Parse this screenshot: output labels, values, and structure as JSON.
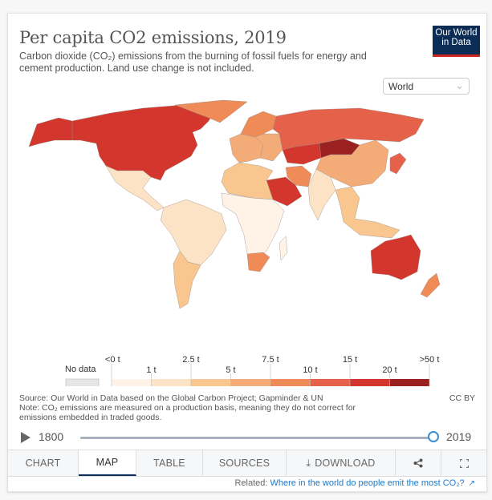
{
  "header": {
    "title": "Per capita CO2 emissions, 2019",
    "subtitle": "Carbon dioxide (CO₂) emissions from the burning of fossil fuels for energy and cement production. Land use change is not included.",
    "logo_line1": "Our World",
    "logo_line2": "in Data"
  },
  "region_select": {
    "value": "World",
    "icon": "chevron-down-icon"
  },
  "colors": {
    "no_data": "#e6e6e6",
    "bins": [
      "#fef3e6",
      "#fde3c5",
      "#f9c690",
      "#f3ac78",
      "#ee8b57",
      "#e6614a",
      "#d2362d",
      "#9b2120"
    ],
    "brand": "#0b2c55",
    "accent": "#ce261e",
    "link": "#1d78c9"
  },
  "chart_data": {
    "type": "choropleth",
    "title": "Per capita CO2 emissions, 2019",
    "unit": "t",
    "legend": {
      "no_data_label": "No data",
      "thresholds": [
        "<0 t",
        "1 t",
        "2.5 t",
        "5 t",
        "7.5 t",
        "10 t",
        "15 t",
        "20 t",
        ">50 t"
      ],
      "top_labels": [
        "<0 t",
        "2.5 t",
        "7.5 t",
        "15 t",
        ">50 t"
      ],
      "bottom_labels": [
        "1 t",
        "5 t",
        "10 t",
        "20 t"
      ]
    },
    "regions": [
      {
        "name": "United States / Canada",
        "bin": 6
      },
      {
        "name": "Alaska",
        "bin": 6
      },
      {
        "name": "Greenland",
        "bin": 4
      },
      {
        "name": "Mexico / Central America",
        "bin": 1
      },
      {
        "name": "South America",
        "bin": 1
      },
      {
        "name": "Argentina / Chile",
        "bin": 2
      },
      {
        "name": "Western Europe",
        "bin": 3
      },
      {
        "name": "Northern Europe",
        "bin": 4
      },
      {
        "name": "Eastern Europe",
        "bin": 3
      },
      {
        "name": "Russia",
        "bin": 5
      },
      {
        "name": "Kazakhstan",
        "bin": 6
      },
      {
        "name": "Mongolia",
        "bin": 7
      },
      {
        "name": "China",
        "bin": 3
      },
      {
        "name": "Japan / Korea",
        "bin": 5
      },
      {
        "name": "Iran",
        "bin": 4
      },
      {
        "name": "Saudi Arabia",
        "bin": 6
      },
      {
        "name": "India",
        "bin": 1
      },
      {
        "name": "Southeast Asia",
        "bin": 2
      },
      {
        "name": "North Africa",
        "bin": 2
      },
      {
        "name": "Sub-Saharan Africa",
        "bin": 0
      },
      {
        "name": "South Africa",
        "bin": 4
      },
      {
        "name": "Australia",
        "bin": 6
      },
      {
        "name": "New Zealand",
        "bin": 4
      },
      {
        "name": "Madagascar",
        "bin": 0
      }
    ]
  },
  "footer": {
    "source": "Source: Our World in Data based on the Global Carbon Project; Gapminder & UN",
    "note": "Note: CO₂ emissions are measured on a production basis, meaning they do not correct for emissions embedded in traded goods.",
    "license": "CC BY"
  },
  "timeline": {
    "start": "1800",
    "end": "2019",
    "position_fraction": 1.0,
    "play_icon": "play-icon"
  },
  "tabs": [
    {
      "label": "CHART",
      "active": false
    },
    {
      "label": "MAP",
      "active": true
    },
    {
      "label": "TABLE",
      "active": false
    },
    {
      "label": "SOURCES",
      "active": false
    },
    {
      "label": "DOWNLOAD",
      "active": false,
      "icon": "download-icon"
    }
  ],
  "actions": {
    "share_icon": "share-icon",
    "fullscreen_icon": "fullscreen-icon"
  },
  "related": {
    "prefix": "Related: ",
    "link_text": "Where in the world do people emit the most CO₂?",
    "icon": "external-link-icon"
  }
}
